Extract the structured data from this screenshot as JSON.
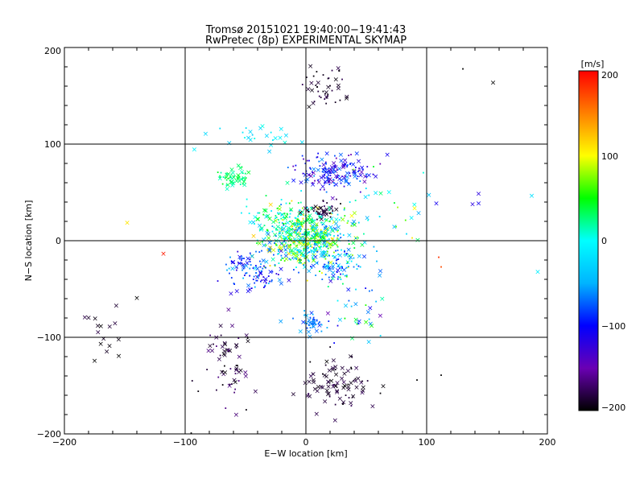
{
  "chart_data": {
    "type": "scatter",
    "title": "Tromsø 20151021 19:40:00−19:41:43",
    "subtitle": "RwPretec (8p) EXPERIMENTAL SKYMAP",
    "xlabel": "E−W location [km]",
    "ylabel": "N−S location [km]",
    "xlim": [
      -200,
      200
    ],
    "ylim": [
      -200,
      200
    ],
    "xticks": [
      "−200",
      "−100",
      "0",
      "100",
      "200"
    ],
    "yticks": [
      "−200",
      "−100",
      "0",
      "100",
      "200"
    ],
    "grid": true,
    "colorbar": {
      "unit": "[m/s]",
      "min": -200,
      "max": 200,
      "ticks": [
        "−200",
        "−100",
        "0",
        "100",
        "200"
      ],
      "placement": "right",
      "colormap": [
        "#000000",
        "#6a00b4",
        "#0000ff",
        "#00b4ff",
        "#00ffff",
        "#00ff00",
        "#ffff00",
        "#ff8000",
        "#ff0000"
      ]
    },
    "markers": {
      "cross": "×",
      "dot": "·"
    },
    "clusters": [
      {
        "x": 0,
        "y": 0,
        "sx": 18,
        "sy": 14,
        "n": 520,
        "vmin": -80,
        "vmax": 120,
        "crossFrac": 0.35
      },
      {
        "x": 25,
        "y": 70,
        "sx": 16,
        "sy": 9,
        "n": 170,
        "vmin": -150,
        "vmax": -60,
        "crossFrac": 0.35
      },
      {
        "x": -60,
        "y": 65,
        "sx": 7,
        "sy": 5,
        "n": 60,
        "vmin": 10,
        "vmax": 45,
        "crossFrac": 0.3
      },
      {
        "x": -10,
        "y": 20,
        "sx": 22,
        "sy": 10,
        "n": 120,
        "vmin": -20,
        "vmax": 50,
        "crossFrac": 0.3
      },
      {
        "x": -40,
        "y": -30,
        "sx": 15,
        "sy": 10,
        "n": 110,
        "vmin": -130,
        "vmax": -40,
        "crossFrac": 0.3
      },
      {
        "x": 25,
        "y": -25,
        "sx": 12,
        "sy": 8,
        "n": 70,
        "vmin": -110,
        "vmax": -20,
        "crossFrac": 0.3
      },
      {
        "x": 5,
        "y": -85,
        "sx": 6,
        "sy": 5,
        "n": 45,
        "vmin": -90,
        "vmax": -40,
        "crossFrac": 0.45
      },
      {
        "x": 15,
        "y": 160,
        "sx": 10,
        "sy": 15,
        "n": 45,
        "vmin": -200,
        "vmax": -175,
        "crossFrac": 0.25
      },
      {
        "x": 25,
        "y": -150,
        "sx": 15,
        "sy": 12,
        "n": 90,
        "vmin": -200,
        "vmax": -175,
        "crossFrac": 0.75
      },
      {
        "x": -65,
        "y": -125,
        "sx": 10,
        "sy": 20,
        "n": 65,
        "vmin": -200,
        "vmax": -160,
        "crossFrac": 0.65
      },
      {
        "x": 15,
        "y": 32,
        "sx": 7,
        "sy": 5,
        "n": 40,
        "vmin": -200,
        "vmax": -170,
        "crossFrac": 0.3
      },
      {
        "x": -170,
        "y": -85,
        "sx": 10,
        "sy": 18,
        "n": 14,
        "vmin": -200,
        "vmax": -180,
        "crossFrac": 1
      },
      {
        "x": 45,
        "y": -70,
        "sx": 12,
        "sy": 18,
        "n": 40,
        "vmin": -150,
        "vmax": 60,
        "crossFrac": 0.5
      },
      {
        "x": -40,
        "y": 110,
        "sx": 20,
        "sy": 8,
        "n": 25,
        "vmin": -40,
        "vmax": 10,
        "crossFrac": 0.5
      },
      {
        "x": 60,
        "y": 25,
        "sx": 25,
        "sy": 20,
        "n": 40,
        "vmin": -60,
        "vmax": 90,
        "crossFrac": 0.5
      }
    ],
    "outliers": [
      {
        "x": 155,
        "y": 163,
        "v": -200,
        "m": "cross"
      },
      {
        "x": 130,
        "y": 177,
        "v": -200,
        "m": "dot"
      },
      {
        "x": 143,
        "y": 48,
        "v": -120,
        "m": "cross"
      },
      {
        "x": 138,
        "y": 37,
        "v": -120,
        "m": "cross"
      },
      {
        "x": 143,
        "y": 38,
        "v": -110,
        "m": "cross"
      },
      {
        "x": 108,
        "y": 38,
        "v": -110,
        "m": "cross"
      },
      {
        "x": 187,
        "y": 46,
        "v": -20,
        "m": "cross"
      },
      {
        "x": 192,
        "y": -33,
        "v": -10,
        "m": "cross"
      },
      {
        "x": 110,
        "y": -18,
        "v": 180,
        "m": "dot"
      },
      {
        "x": 112,
        "y": -28,
        "v": 170,
        "m": "dot"
      },
      {
        "x": -118,
        "y": -14,
        "v": 190,
        "m": "cross"
      },
      {
        "x": -148,
        "y": 18,
        "v": 110,
        "m": "cross"
      },
      {
        "x": 92,
        "y": -145,
        "v": -200,
        "m": "dot"
      },
      {
        "x": 112,
        "y": -140,
        "v": -200,
        "m": "dot"
      },
      {
        "x": -95,
        "y": -200,
        "v": -200,
        "m": "dot"
      },
      {
        "x": 90,
        "y": 33,
        "v": 100,
        "m": "cross"
      },
      {
        "x": 88,
        "y": 2,
        "v": 110,
        "m": "dot"
      },
      {
        "x": -140,
        "y": -60,
        "v": -200,
        "m": "cross"
      },
      {
        "x": -155,
        "y": -120,
        "v": -200,
        "m": "cross"
      },
      {
        "x": -175,
        "y": -125,
        "v": -200,
        "m": "cross"
      }
    ]
  }
}
